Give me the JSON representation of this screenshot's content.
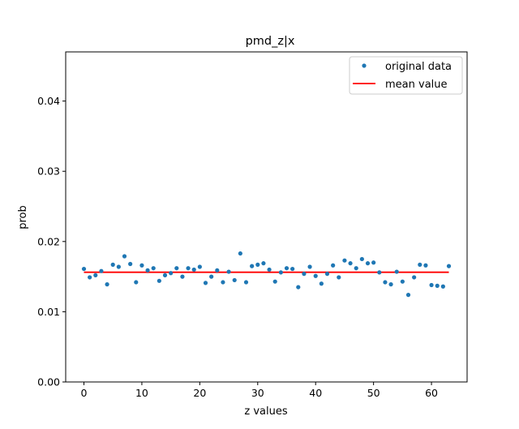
{
  "chart_data": {
    "type": "scatter",
    "title": "pmd_z|x",
    "xlabel": "z values",
    "ylabel": "prob",
    "xlim": [
      -3.15,
      66.15
    ],
    "ylim": [
      0.0,
      0.047
    ],
    "xticks": [
      0,
      10,
      20,
      30,
      40,
      50,
      60
    ],
    "xtick_labels": [
      "0",
      "10",
      "20",
      "30",
      "40",
      "50",
      "60"
    ],
    "yticks": [
      0.0,
      0.01,
      0.02,
      0.03,
      0.04
    ],
    "ytick_labels": [
      "0.00",
      "0.01",
      "0.02",
      "0.03",
      "0.04"
    ],
    "grid": false,
    "legend": {
      "position": "top-right",
      "entries": [
        {
          "label": "original data",
          "color": "#1f77b4",
          "marker": "dot"
        },
        {
          "label": "mean value",
          "color": "#ff0000",
          "marker": "line"
        }
      ]
    },
    "series": [
      {
        "name": "original data",
        "color": "#1f77b4",
        "style": "points",
        "x": [
          0,
          1,
          2,
          3,
          4,
          5,
          6,
          7,
          8,
          9,
          10,
          11,
          12,
          13,
          14,
          15,
          16,
          17,
          18,
          19,
          20,
          21,
          22,
          23,
          24,
          25,
          26,
          27,
          28,
          29,
          30,
          31,
          32,
          33,
          34,
          35,
          36,
          37,
          38,
          39,
          40,
          41,
          42,
          43,
          44,
          45,
          46,
          47,
          48,
          49,
          50,
          51,
          52,
          53,
          54,
          55,
          56,
          57,
          58,
          59,
          60,
          61,
          62,
          63
        ],
        "y": [
          0.0161,
          0.0149,
          0.0152,
          0.0158,
          0.0139,
          0.0167,
          0.0164,
          0.0179,
          0.0168,
          0.0142,
          0.0166,
          0.0159,
          0.0162,
          0.0144,
          0.0152,
          0.0155,
          0.0162,
          0.015,
          0.0162,
          0.016,
          0.0164,
          0.0141,
          0.015,
          0.0159,
          0.0142,
          0.0157,
          0.0145,
          0.0183,
          0.0142,
          0.0165,
          0.0167,
          0.0169,
          0.016,
          0.0143,
          0.0156,
          0.0162,
          0.0161,
          0.0135,
          0.0154,
          0.0164,
          0.0151,
          0.014,
          0.0154,
          0.0166,
          0.0149,
          0.0173,
          0.0169,
          0.0162,
          0.0175,
          0.0169,
          0.017,
          0.0156,
          0.0142,
          0.0139,
          0.0157,
          0.0143,
          0.0124,
          0.0149,
          0.0167,
          0.0166,
          0.0138,
          0.0137,
          0.0136,
          0.0165
        ]
      },
      {
        "name": "mean value",
        "color": "#ff0000",
        "style": "line",
        "x": [
          0,
          63
        ],
        "y": [
          0.015625,
          0.015625
        ]
      }
    ]
  }
}
